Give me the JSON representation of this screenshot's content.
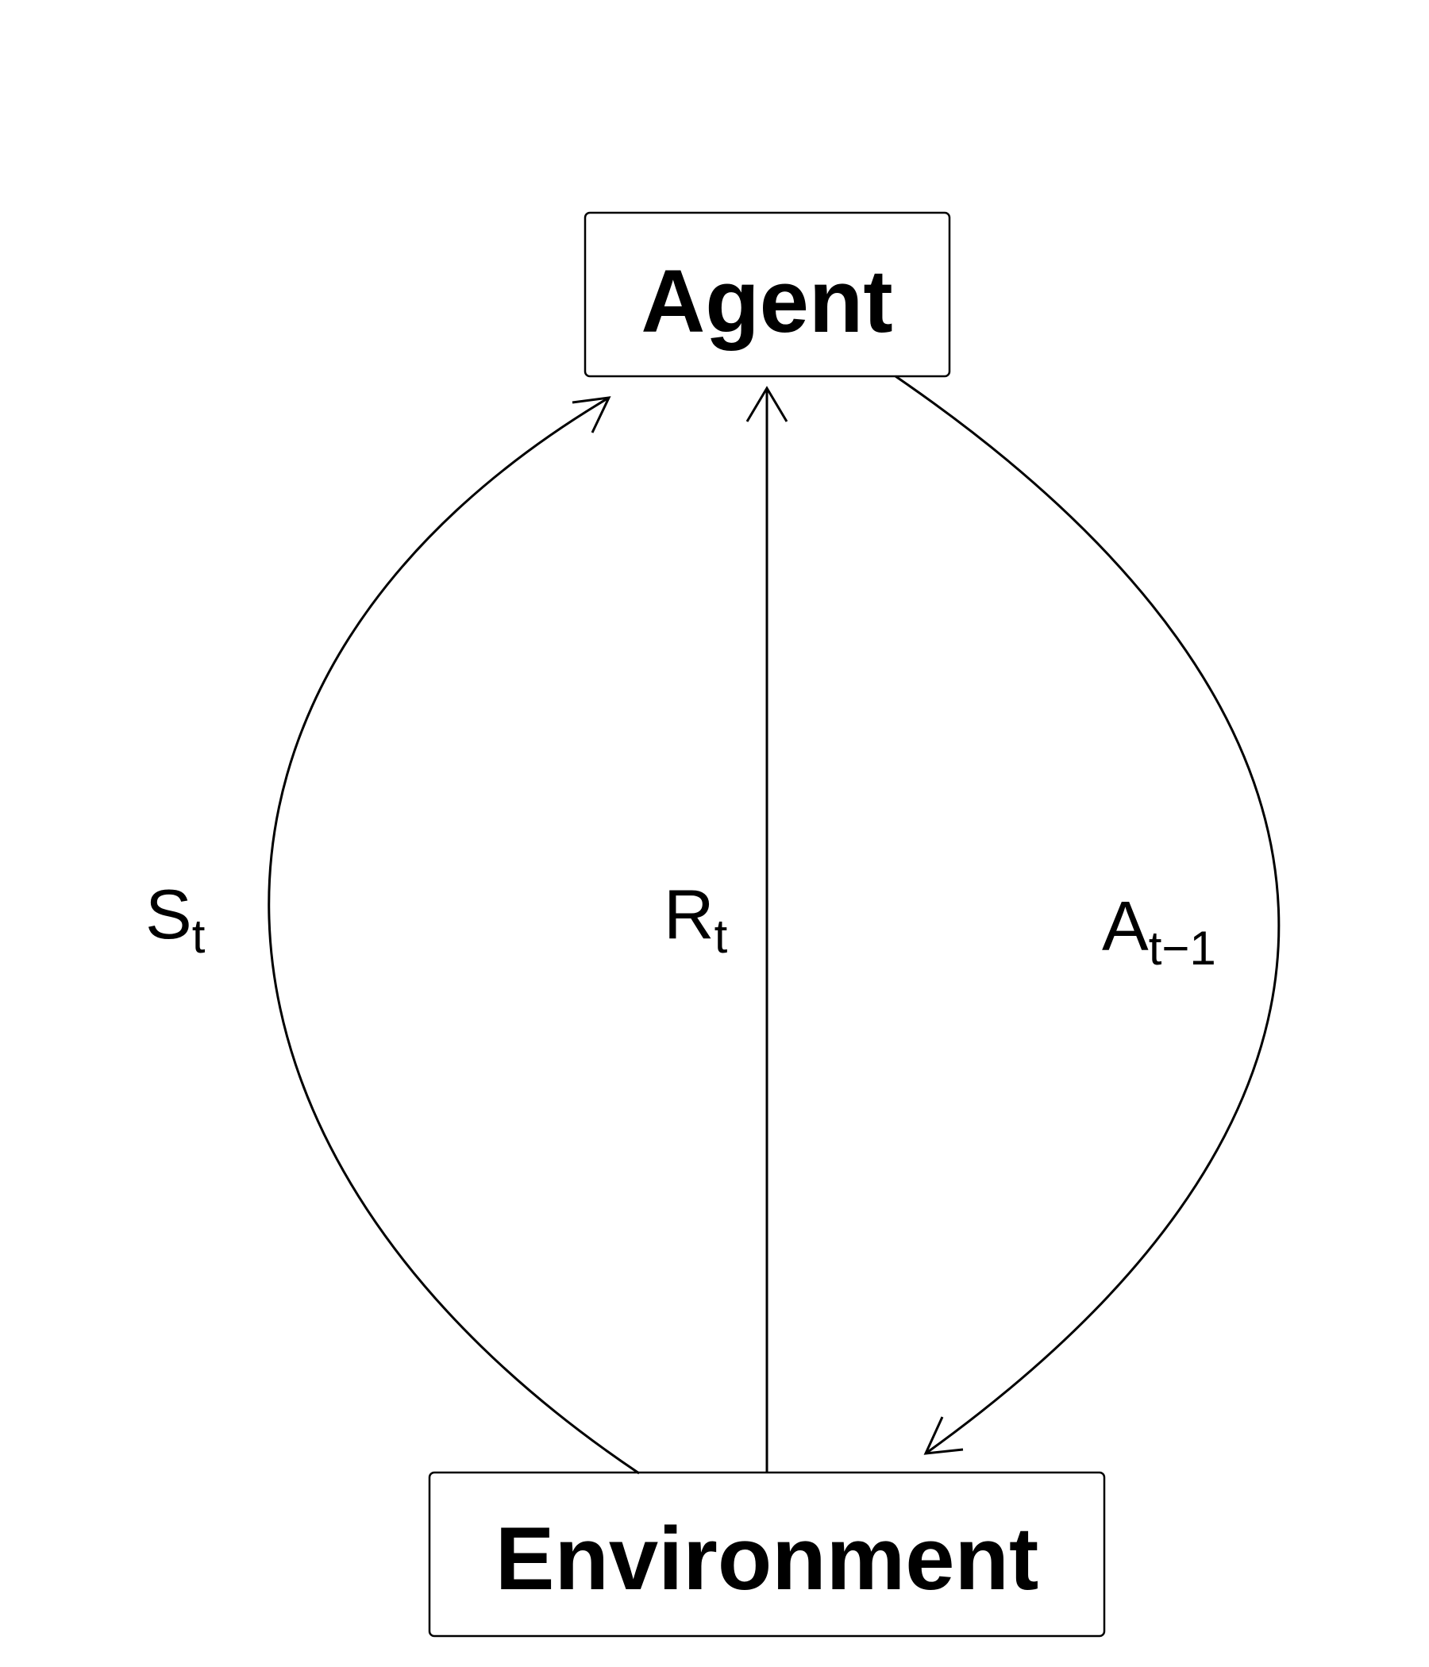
{
  "nodes": {
    "agent": {
      "label": "Agent"
    },
    "environment": {
      "label": "Environment"
    }
  },
  "edges": {
    "state": {
      "from": "environment",
      "to": "agent",
      "label_main": "S",
      "label_sub": "t"
    },
    "reward": {
      "from": "environment",
      "to": "agent",
      "label_main": "R",
      "label_sub": "t"
    },
    "action": {
      "from": "agent",
      "to": "environment",
      "label_main": "A",
      "label_sub": "t−1"
    }
  }
}
